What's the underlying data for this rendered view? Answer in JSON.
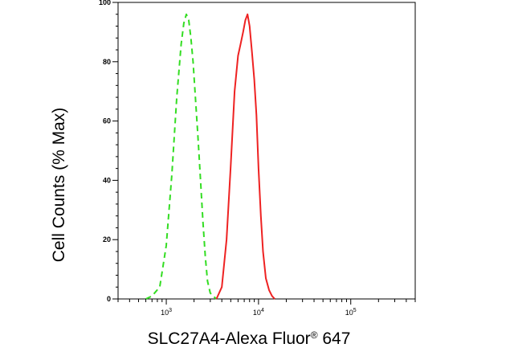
{
  "chart_data": {
    "type": "line",
    "title": "",
    "xlabel": "SLC27A4-Alexa Fluor",
    "xlabel_superscript": "®",
    "xlabel_suffix": " 647",
    "ylabel": "Cell Counts (% Max)",
    "x_scale": "log",
    "xlim": [
      300,
      500000
    ],
    "ylim": [
      0,
      100
    ],
    "y_ticks": [
      {
        "value": 0,
        "label": "0"
      },
      {
        "value": 20,
        "label": "20"
      },
      {
        "value": 40,
        "label": "40"
      },
      {
        "value": 60,
        "label": "60"
      },
      {
        "value": 80,
        "label": "80"
      },
      {
        "value": 100,
        "label": "100"
      }
    ],
    "x_ticks": [
      {
        "value": 1000,
        "base": "10",
        "exp": "3"
      },
      {
        "value": 10000,
        "base": "10",
        "exp": "4"
      },
      {
        "value": 100000,
        "base": "10",
        "exp": "5"
      }
    ],
    "grid": false,
    "legend": "none",
    "series": [
      {
        "color": "#33dd22",
        "dash": "dashed",
        "x": [
          600,
          700,
          850,
          1000,
          1150,
          1300,
          1450,
          1550,
          1650,
          1750,
          1850,
          1950,
          2050,
          2200,
          2350,
          2500,
          2650,
          2800,
          3000,
          3200,
          3500
        ],
        "y": [
          0,
          1,
          4,
          18,
          42,
          68,
          86,
          93,
          96,
          94,
          88,
          80,
          70,
          55,
          40,
          26,
          14,
          6,
          2,
          1,
          0
        ]
      },
      {
        "color": "#ee2222",
        "dash": "solid",
        "x": [
          3500,
          4000,
          4500,
          5000,
          5500,
          6000,
          6400,
          6800,
          7200,
          7600,
          8000,
          8500,
          9000,
          9500,
          10000,
          10600,
          11200,
          12000,
          13000,
          14000,
          15000
        ],
        "y": [
          0,
          4,
          20,
          45,
          70,
          82,
          86,
          90,
          94,
          96,
          92,
          83,
          74,
          62,
          44,
          28,
          16,
          7,
          3,
          1,
          0
        ]
      }
    ]
  }
}
